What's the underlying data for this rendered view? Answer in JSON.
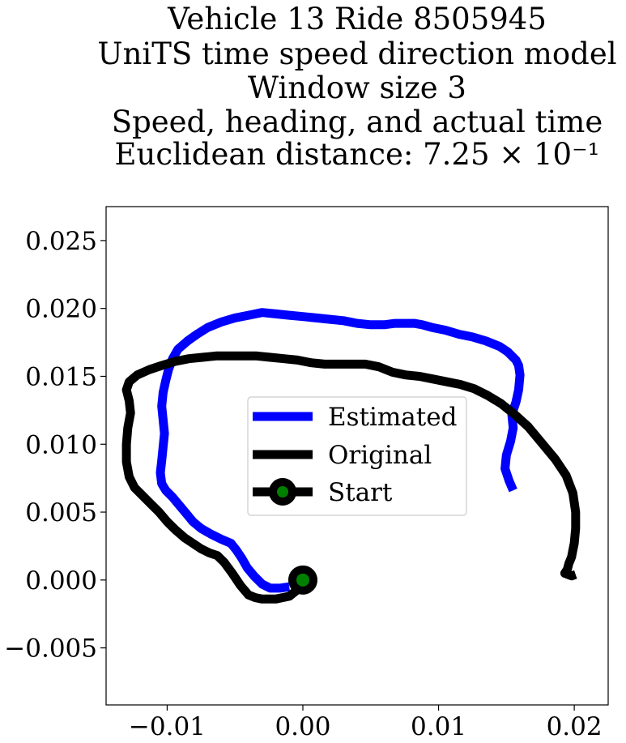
{
  "chart_data": {
    "type": "line",
    "title_lines": [
      "Vehicle 13 Ride 8505945",
      "UniTS time speed direction model",
      "Window size 3",
      "Speed, heading, and actual time",
      "Euclidean distance: 7.25 × 10⁻¹"
    ],
    "xlabel": "",
    "ylabel": "",
    "xlim": [
      -0.0145,
      0.0225
    ],
    "ylim": [
      -0.0092,
      0.0275
    ],
    "x_ticks": [
      -0.01,
      0.0,
      0.01,
      0.02
    ],
    "x_tick_labels": [
      "−0.01",
      "0.00",
      "0.01",
      "0.02"
    ],
    "y_ticks": [
      -0.005,
      0.0,
      0.005,
      0.01,
      0.015,
      0.02,
      0.025
    ],
    "y_tick_labels": [
      "−0.005",
      "0.000",
      "0.005",
      "0.010",
      "0.015",
      "0.020",
      "0.025"
    ],
    "grid": false,
    "legend_position": "center",
    "series": [
      {
        "name": "Estimated",
        "color": "#0000ff",
        "x": [
          0.0155,
          0.0152,
          0.0149,
          0.015,
          0.0153,
          0.0155,
          0.0154,
          0.0157,
          0.0159,
          0.016,
          0.0159,
          0.0157,
          0.0151,
          0.0145,
          0.0135,
          0.0125,
          0.0115,
          0.0105,
          0.0095,
          0.0088,
          0.0082,
          0.0075,
          0.0068,
          0.006,
          0.005,
          0.004,
          0.003,
          0.002,
          0.001,
          0.0,
          -0.001,
          -0.002,
          -0.003,
          -0.004,
          -0.005,
          -0.006,
          -0.007,
          -0.0078,
          -0.0085,
          -0.0092,
          -0.0096,
          -0.0099,
          -0.0101,
          -0.0103,
          -0.0104,
          -0.0103,
          -0.0102,
          -0.0103,
          -0.0104,
          -0.0105,
          -0.0104,
          -0.0101,
          -0.0096,
          -0.0091,
          -0.0086,
          -0.0081,
          -0.0075,
          -0.0068,
          -0.006,
          -0.0053,
          -0.0049,
          -0.0045,
          -0.0041,
          -0.0036,
          -0.003,
          -0.0024,
          -0.0017,
          -0.001
        ],
        "y": [
          0.0066,
          0.0073,
          0.0082,
          0.0092,
          0.0102,
          0.0112,
          0.0122,
          0.0131,
          0.014,
          0.0151,
          0.0158,
          0.0162,
          0.0168,
          0.0172,
          0.0176,
          0.0179,
          0.0181,
          0.0184,
          0.0186,
          0.0188,
          0.0189,
          0.0189,
          0.0189,
          0.0188,
          0.0188,
          0.0189,
          0.0191,
          0.0192,
          0.0193,
          0.0194,
          0.0195,
          0.0196,
          0.0197,
          0.0195,
          0.0193,
          0.019,
          0.0186,
          0.0181,
          0.0176,
          0.017,
          0.0163,
          0.0155,
          0.0147,
          0.0138,
          0.0128,
          0.0118,
          0.0108,
          0.0098,
          0.0088,
          0.0079,
          0.0071,
          0.0066,
          0.0061,
          0.0055,
          0.0049,
          0.0043,
          0.0038,
          0.0034,
          0.003,
          0.0027,
          0.0022,
          0.0016,
          0.0009,
          0.0003,
          -0.0003,
          -0.0006,
          -0.0006,
          -0.0005
        ]
      },
      {
        "name": "Original",
        "color": "#000000",
        "x": [
          0.0,
          -0.0005,
          -0.001,
          -0.0015,
          -0.002,
          -0.0025,
          -0.003,
          -0.0035,
          -0.004,
          -0.0046,
          -0.0052,
          -0.0058,
          -0.0063,
          -0.0069,
          -0.0075,
          -0.0081,
          -0.0087,
          -0.0094,
          -0.01,
          -0.0106,
          -0.0112,
          -0.0118,
          -0.0124,
          -0.0128,
          -0.013,
          -0.013,
          -0.0129,
          -0.0127,
          -0.0128,
          -0.013,
          -0.0128,
          -0.0122,
          -0.0113,
          -0.0104,
          -0.0094,
          -0.0084,
          -0.0074,
          -0.0064,
          -0.0054,
          -0.0044,
          -0.0034,
          -0.0024,
          -0.0014,
          -0.0004,
          0.0006,
          0.0016,
          0.0026,
          0.0036,
          0.0046,
          0.0056,
          0.0066,
          0.0076,
          0.0086,
          0.0096,
          0.0106,
          0.0116,
          0.0126,
          0.0136,
          0.0146,
          0.0156,
          0.0166,
          0.0176,
          0.0186,
          0.0194,
          0.0199,
          0.0201,
          0.0201,
          0.02,
          0.0199,
          0.0198,
          0.0196,
          0.0195,
          0.0193,
          0.0198,
          0.0201
        ],
        "y": [
          0.0,
          -0.0008,
          -0.0012,
          -0.0013,
          -0.0014,
          -0.0014,
          -0.0014,
          -0.0013,
          -0.0011,
          -0.0004,
          0.0005,
          0.0013,
          0.0018,
          0.002,
          0.0023,
          0.0027,
          0.0031,
          0.0037,
          0.0043,
          0.005,
          0.0056,
          0.0062,
          0.0068,
          0.0076,
          0.0087,
          0.01,
          0.0112,
          0.0123,
          0.0132,
          0.014,
          0.0146,
          0.0151,
          0.0155,
          0.0158,
          0.0161,
          0.0163,
          0.0164,
          0.0165,
          0.0165,
          0.0165,
          0.0165,
          0.0164,
          0.0163,
          0.0162,
          0.016,
          0.0159,
          0.0159,
          0.0159,
          0.0159,
          0.0157,
          0.0153,
          0.0151,
          0.015,
          0.0148,
          0.0146,
          0.0144,
          0.0141,
          0.0136,
          0.013,
          0.0122,
          0.0113,
          0.0101,
          0.0089,
          0.0077,
          0.0064,
          0.005,
          0.0038,
          0.0027,
          0.0022,
          0.0017,
          0.0012,
          0.0008,
          0.0005,
          0.0003,
          0.0004
        ]
      }
    ],
    "start_point": {
      "name": "Start",
      "x": 0.0,
      "y": 0.0,
      "outer_color": "#000000",
      "inner_color": "#008000"
    }
  }
}
